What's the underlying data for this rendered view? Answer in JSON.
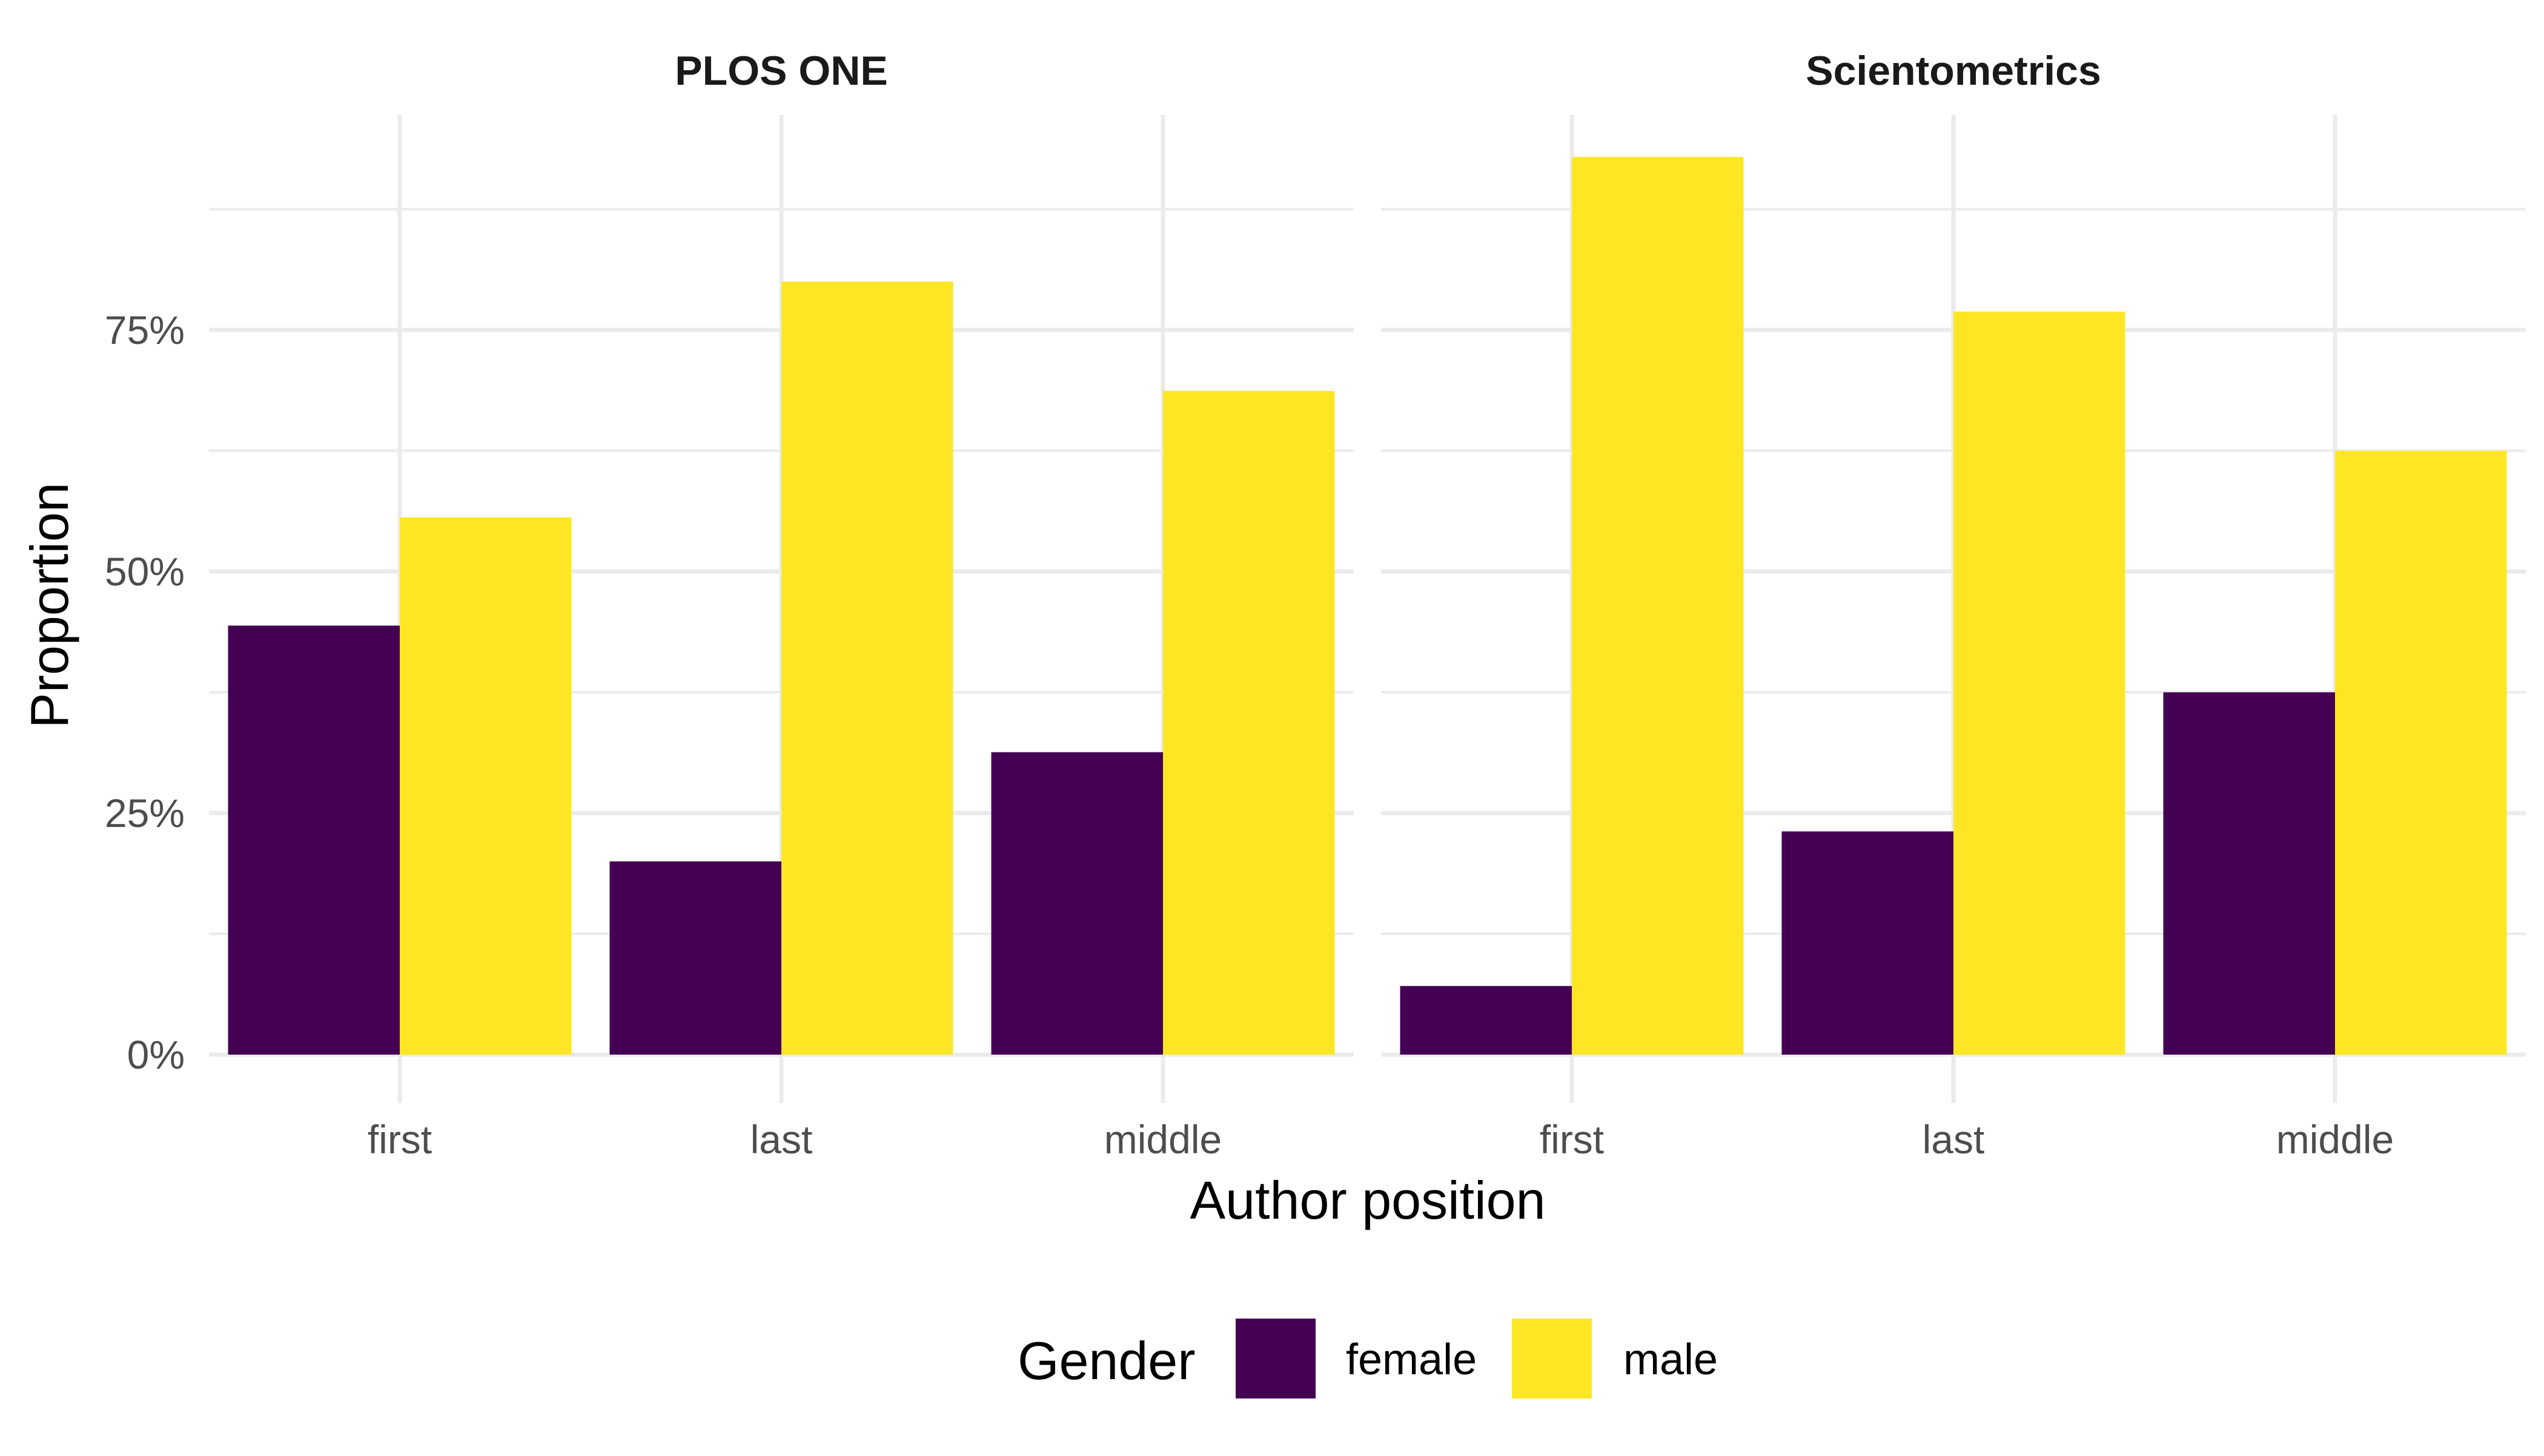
{
  "chart_data": {
    "type": "bar",
    "facets": [
      {
        "title": "PLOS ONE",
        "categories": [
          "first",
          "last",
          "middle"
        ],
        "series": [
          {
            "name": "female",
            "values": [
              0.444,
              0.2,
              0.313
            ]
          },
          {
            "name": "male",
            "values": [
              0.556,
              0.8,
              0.687
            ]
          }
        ]
      },
      {
        "title": "Scientometrics",
        "categories": [
          "first",
          "last",
          "middle"
        ],
        "series": [
          {
            "name": "female",
            "values": [
              0.071,
              0.231,
              0.375
            ]
          },
          {
            "name": "male",
            "values": [
              0.929,
              0.769,
              0.625
            ]
          }
        ]
      }
    ],
    "xlabel": "Author position",
    "ylabel": "Proportion",
    "ylim": [
      0,
      1
    ],
    "yticks": [
      0,
      0.25,
      0.5,
      0.75
    ],
    "ytick_labels": [
      "0%",
      "25%",
      "50%",
      "75%"
    ],
    "legend": {
      "title": "Gender",
      "position": "bottom",
      "entries": [
        {
          "name": "female",
          "color": "#440154"
        },
        {
          "name": "male",
          "color": "#FDE725"
        }
      ]
    },
    "colors": {
      "female": "#440154",
      "male": "#FDE725"
    },
    "grid": true
  }
}
